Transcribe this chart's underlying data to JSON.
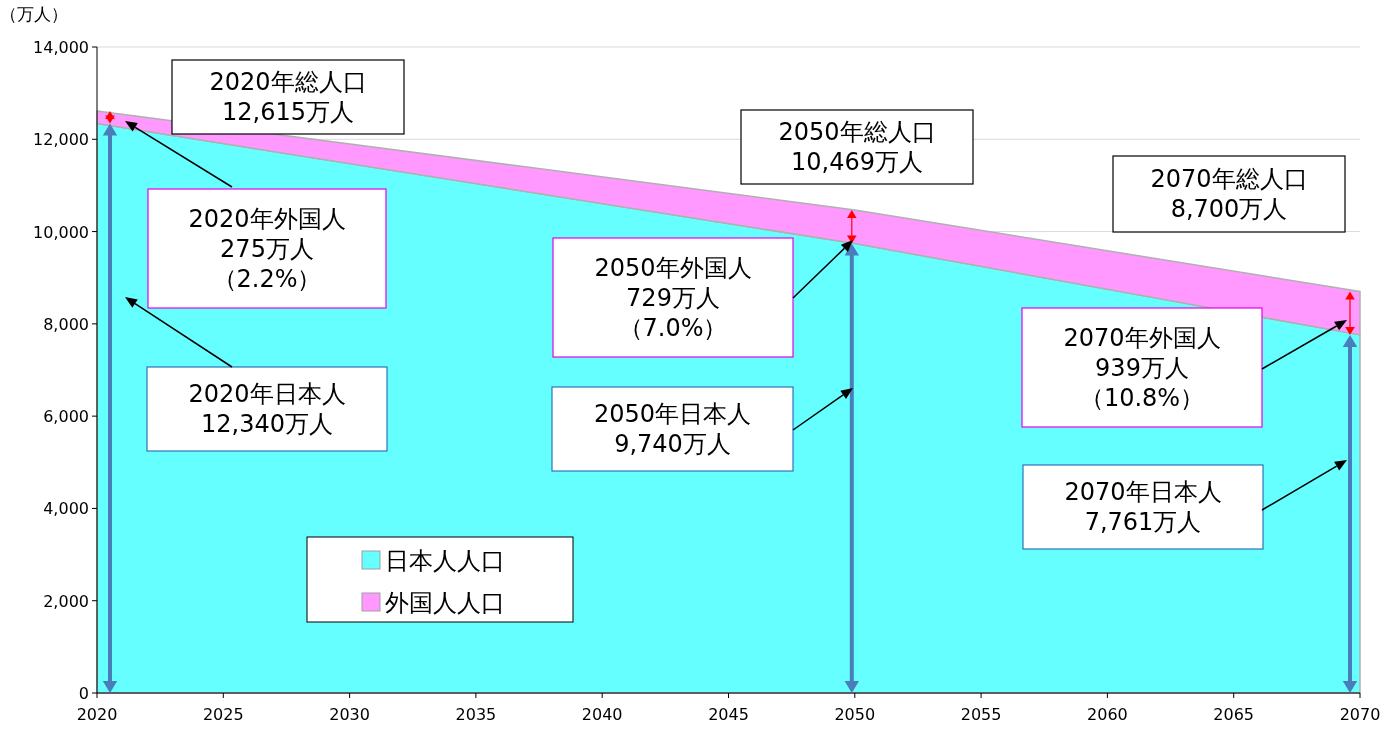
{
  "chart_data": {
    "type": "area",
    "stacked": true,
    "ylabel": "（万人）",
    "x": [
      2020,
      2050,
      2070
    ],
    "series": [
      {
        "name": "日本人人口",
        "color": "#66ffff",
        "values": [
          12340,
          9740,
          7761
        ]
      },
      {
        "name": "外国人人口",
        "color": "#ff99ff",
        "values": [
          275,
          729,
          939
        ]
      }
    ],
    "xlim": [
      2020,
      2070
    ],
    "xticks": [
      2020,
      2025,
      2030,
      2035,
      2040,
      2045,
      2050,
      2055,
      2060,
      2065,
      2070
    ],
    "ylim": [
      0,
      14000
    ],
    "yticks": [
      {
        "value": 0,
        "label": "0"
      },
      {
        "value": 2000,
        "label": "2,000"
      },
      {
        "value": 4000,
        "label": "4,000"
      },
      {
        "value": 6000,
        "label": "6,000"
      },
      {
        "value": 8000,
        "label": "8,000"
      },
      {
        "value": 10000,
        "label": "10,000"
      },
      {
        "value": 12000,
        "label": "12,000"
      },
      {
        "value": 14000,
        "label": "14,000"
      }
    ],
    "grid": "y",
    "legend": "bottom left",
    "annotations": [
      "2020年総人口\n12,615万人",
      "2020年外国人\n275万人（2.2%）",
      "2020年日本人\n12,340万人",
      "2050年総人口\n10,469万人",
      "2050年外国人\n729万人（7.0%）",
      "2050年日本人\n9,740万人",
      "2070年総人口\n8,700万人",
      "2070年外国人\n939万人（10.8%）",
      "2070年日本人\n7,761万人"
    ]
  }
}
